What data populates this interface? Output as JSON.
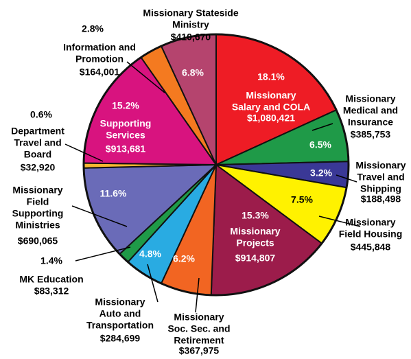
{
  "chart_data": {
    "type": "pie",
    "categories": [
      [
        "Missionary",
        "Salary and COLA"
      ],
      [
        "Missionary",
        "Medical and",
        "Insurance"
      ],
      [
        "Missionary",
        "Travel and",
        "Shipping"
      ],
      [
        "Missionary",
        "Field Housing"
      ],
      [
        "Missionary",
        "Projects"
      ],
      [
        "Missionary",
        "Soc. Sec. and",
        "Retirement"
      ],
      [
        "Missionary",
        "Auto and",
        "Transportation"
      ],
      [
        "MK Education"
      ],
      [
        "Missionary",
        "Field",
        "Supporting",
        "Ministries"
      ],
      [
        "Department",
        "Travel and",
        "Board"
      ],
      [
        "Supporting",
        "Services"
      ],
      [
        "Information and",
        "Promotion"
      ],
      [
        "Missionary Stateside",
        "Ministry"
      ]
    ],
    "values": [
      18.1,
      6.5,
      3.2,
      7.5,
      15.3,
      6.2,
      4.8,
      1.4,
      11.6,
      0.6,
      15.2,
      2.8,
      6.8
    ],
    "value_labels": [
      "18.1%",
      "6.5%",
      "3.2%",
      "7.5%",
      "15.3%",
      "6.2%",
      "4.8%",
      "1.4%",
      "11.6%",
      "0.6%",
      "15.2%",
      "2.8%",
      "6.8%"
    ],
    "amounts": [
      "$1,080,421",
      "$385,753",
      "$188,498",
      "$445,848",
      "$914,807",
      "$367,975",
      "$284,699",
      "$83,312",
      "$690,065",
      "$32,920",
      "$913,681",
      "$164,001",
      "$410,670"
    ],
    "colors": [
      "#ee1c25",
      "#1f9a48",
      "#3a3896",
      "#fff200",
      "#9c1c4b",
      "#f26522",
      "#29abe2",
      "#1f9a48",
      "#6a6bb8",
      "#f7b731",
      "#d8137f",
      "#f47a20",
      "#b5446e"
    ]
  }
}
